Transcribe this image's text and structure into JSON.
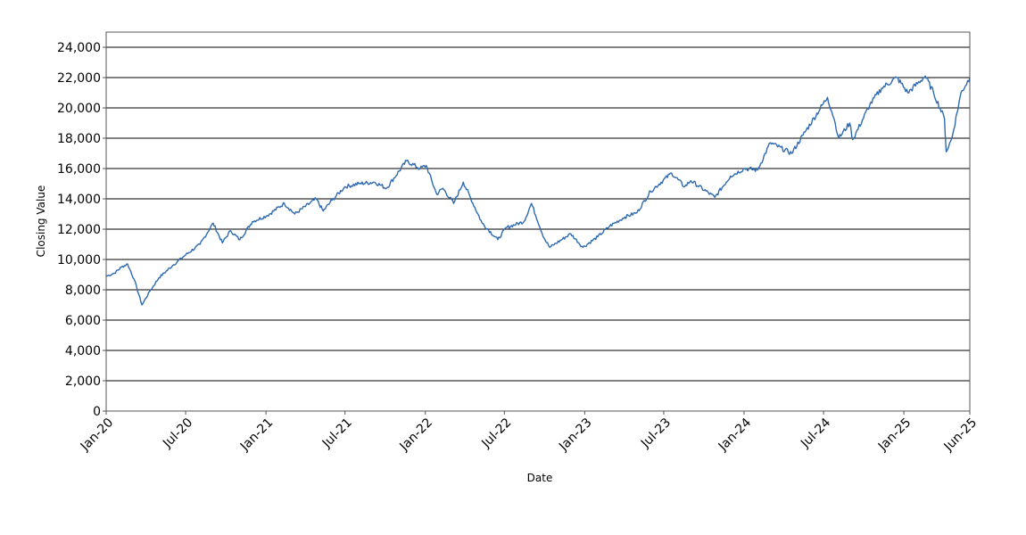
{
  "chart_data": {
    "type": "line",
    "title": "",
    "xlabel": "Date",
    "ylabel": "Closing Value",
    "x_range": [
      "2020-01-01",
      "2025-06-01"
    ],
    "ylim": [
      0,
      25000
    ],
    "y_ticks": [
      0,
      2000,
      4000,
      6000,
      8000,
      10000,
      12000,
      14000,
      16000,
      18000,
      20000,
      22000,
      24000
    ],
    "y_tick_labels": [
      "0",
      "2,000",
      "4,000",
      "6,000",
      "8,000",
      "10,000",
      "12,000",
      "14,000",
      "16,000",
      "18,000",
      "20,000",
      "22,000",
      "24,000"
    ],
    "x_ticks": [
      "2020-01-01",
      "2020-07-01",
      "2021-01-01",
      "2021-07-01",
      "2022-01-01",
      "2022-07-01",
      "2023-01-01",
      "2023-07-01",
      "2024-01-01",
      "2024-07-01",
      "2025-01-01",
      "2025-06-01"
    ],
    "x_tick_labels": [
      "Jan-20",
      "Jul-20",
      "Jan-21",
      "Jul-21",
      "Jan-22",
      "Jul-22",
      "Jan-23",
      "Jul-23",
      "Jan-24",
      "Jul-24",
      "Jan-25",
      "Jun-25"
    ],
    "grid": "horizontal",
    "line_color": "#2e6ab1",
    "series": [
      {
        "x": [
          "2020-01-02",
          "2020-01-20",
          "2020-02-05",
          "2020-02-19",
          "2020-03-05",
          "2020-03-23",
          "2020-04-10",
          "2020-05-01",
          "2020-06-01",
          "2020-07-01",
          "2020-08-03",
          "2020-09-02",
          "2020-09-23",
          "2020-10-12",
          "2020-11-02",
          "2020-12-01",
          "2021-01-04",
          "2021-02-12",
          "2021-03-08",
          "2021-04-26",
          "2021-05-12",
          "2021-06-01",
          "2021-07-01",
          "2021-08-02",
          "2021-09-07",
          "2021-10-04",
          "2021-11-19",
          "2021-12-20",
          "2022-01-03",
          "2022-01-27",
          "2022-02-10",
          "2022-03-07",
          "2022-03-29",
          "2022-05-11",
          "2022-06-16",
          "2022-07-05",
          "2022-08-15",
          "2022-09-01",
          "2022-09-30",
          "2022-10-13",
          "2022-11-30",
          "2022-12-28",
          "2023-01-31",
          "2023-02-27",
          "2023-04-03",
          "2023-05-01",
          "2023-06-01",
          "2023-07-19",
          "2023-08-18",
          "2023-09-01",
          "2023-10-26",
          "2023-12-01",
          "2024-01-02",
          "2024-02-01",
          "2024-03-01",
          "2024-04-19",
          "2024-05-15",
          "2024-07-10",
          "2024-07-25",
          "2024-08-05",
          "2024-08-30",
          "2024-09-06",
          "2024-10-15",
          "2024-11-11",
          "2024-12-16",
          "2025-01-10",
          "2025-02-19",
          "2025-03-10",
          "2025-04-04",
          "2025-04-08",
          "2025-04-21",
          "2025-05-12",
          "2025-06-01"
        ],
        "y": [
          8900,
          9100,
          9500,
          9700,
          8700,
          7000,
          7900,
          8800,
          9600,
          10300,
          11000,
          12400,
          11100,
          11900,
          11300,
          12500,
          12900,
          13700,
          13000,
          14000,
          13200,
          13900,
          14800,
          15000,
          15100,
          14700,
          16500,
          16000,
          16200,
          14300,
          14700,
          13700,
          15100,
          12400,
          11300,
          12100,
          12500,
          13700,
          11400,
          10800,
          11700,
          10800,
          11500,
          12200,
          12800,
          13100,
          14500,
          15700,
          14800,
          15200,
          14100,
          15500,
          16000,
          15900,
          17700,
          17000,
          18200,
          20700,
          19300,
          18000,
          19000,
          17900,
          20200,
          21300,
          22000,
          21000,
          22100,
          21000,
          19300,
          17100,
          18000,
          21000,
          22000
        ]
      }
    ]
  }
}
